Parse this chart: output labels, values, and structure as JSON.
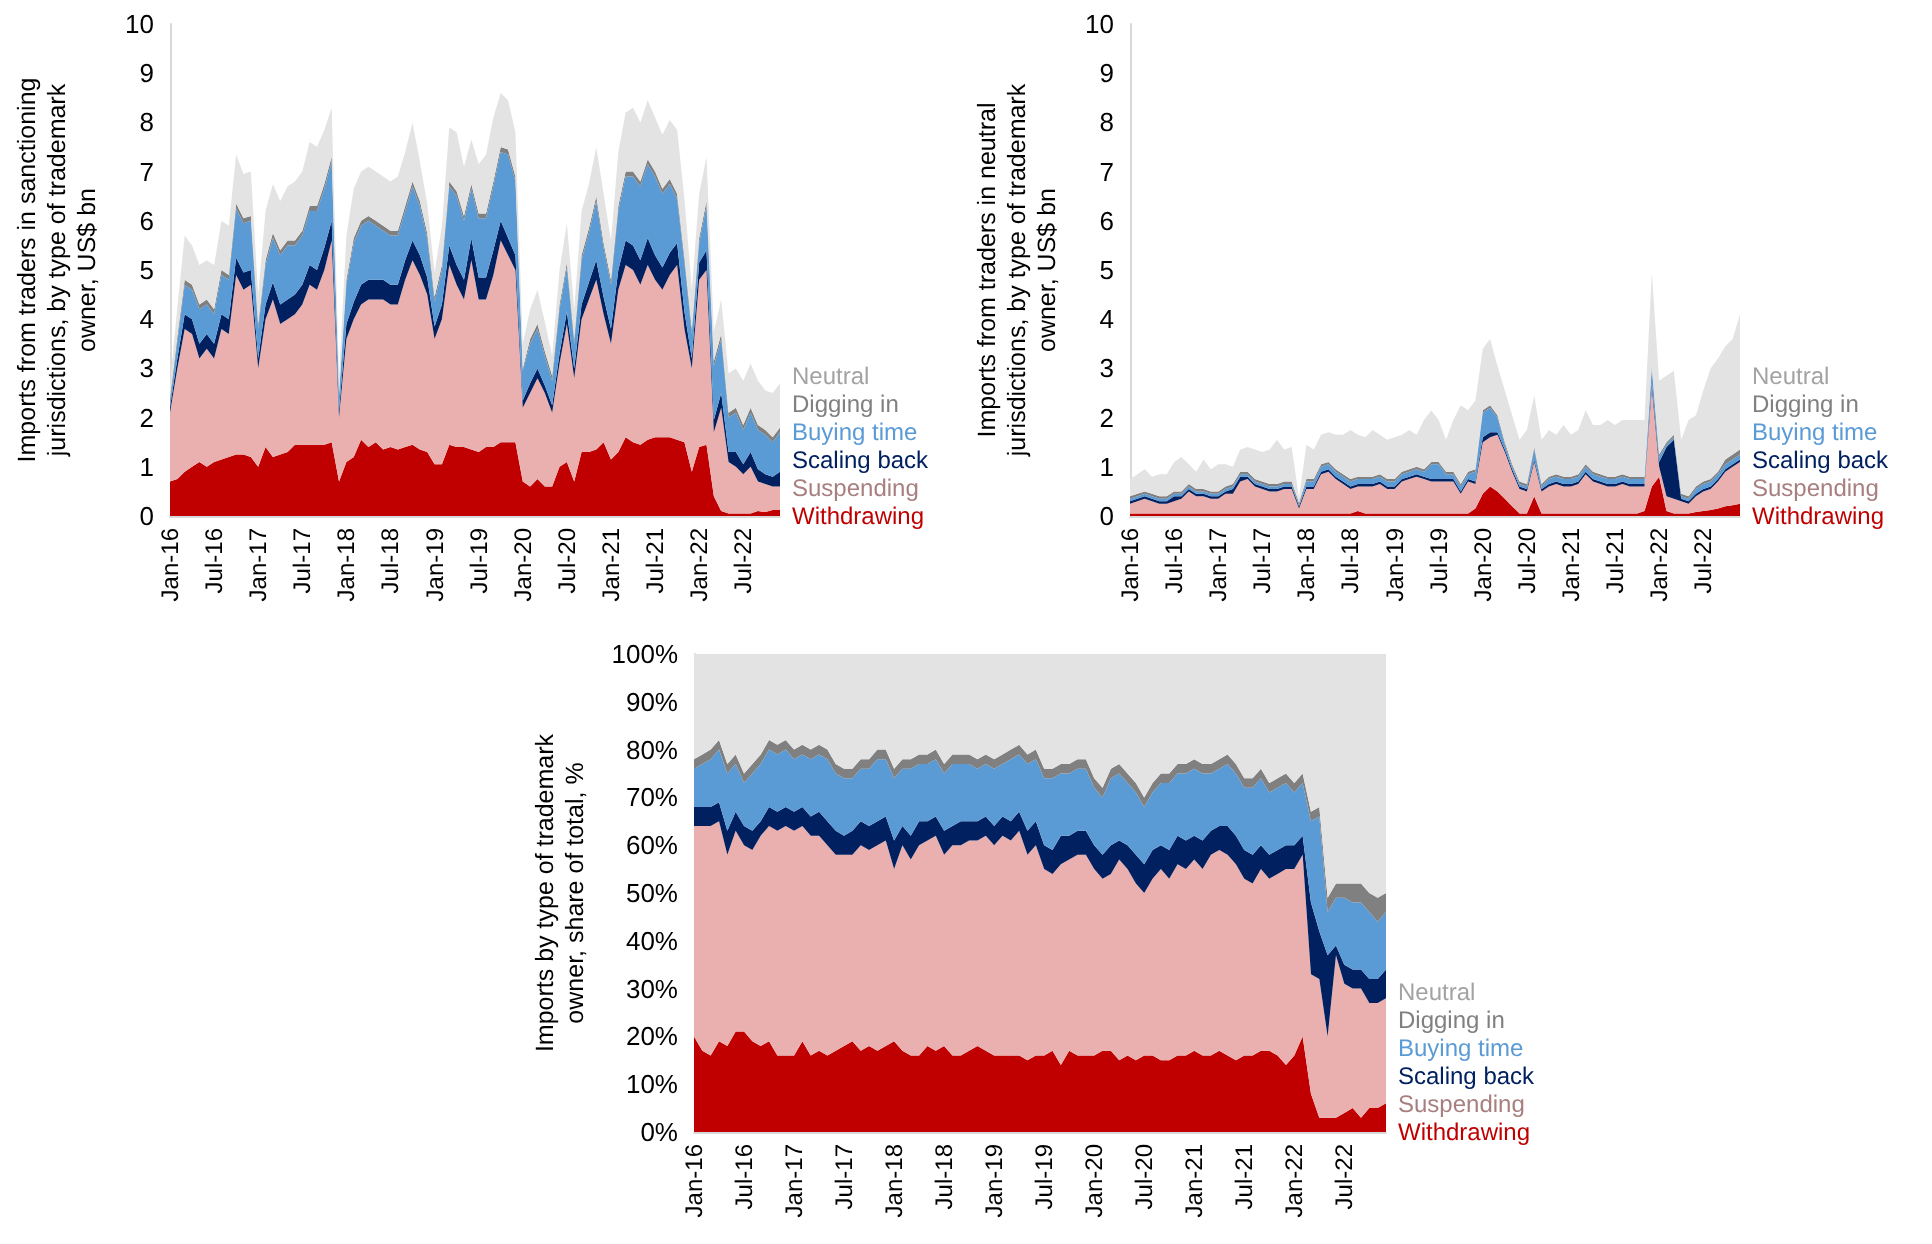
{
  "chart_data": [
    {
      "type": "area",
      "stacked": true,
      "legend": "right",
      "ylabel": "Imports from traders in sanctioning jurisdictions, by type of trademark owner, US$ bn",
      "ylim": [
        0,
        10
      ],
      "yticks": [
        0,
        1,
        2,
        3,
        4,
        5,
        6,
        7,
        8,
        9,
        10
      ],
      "categories": [
        "Jan-16",
        null,
        null,
        null,
        null,
        null,
        "Jul-16",
        null,
        null,
        null,
        null,
        null,
        "Jan-17",
        null,
        null,
        null,
        null,
        null,
        "Jul-17",
        null,
        null,
        null,
        null,
        null,
        "Jan-18",
        null,
        null,
        null,
        null,
        null,
        "Jul-18",
        null,
        null,
        null,
        null,
        null,
        "Jan-19",
        null,
        null,
        null,
        null,
        null,
        "Jul-19",
        null,
        null,
        null,
        null,
        null,
        "Jan-20",
        null,
        null,
        null,
        null,
        null,
        "Jul-20",
        null,
        null,
        null,
        null,
        null,
        "Jan-21",
        null,
        null,
        null,
        null,
        null,
        "Jul-21",
        null,
        null,
        null,
        null,
        null,
        "Jan-22",
        null,
        null,
        null,
        null,
        null,
        "Jul-22",
        null,
        null,
        null,
        null,
        null
      ],
      "series": [
        {
          "name": "Withdrawing",
          "color": "#c00000",
          "values": [
            0.7,
            0.75,
            0.9,
            1.0,
            1.1,
            1.0,
            1.1,
            1.15,
            1.2,
            1.25,
            1.25,
            1.2,
            1.0,
            1.4,
            1.2,
            1.25,
            1.3,
            1.45,
            1.45,
            1.45,
            1.45,
            1.45,
            1.5,
            0.7,
            1.1,
            1.2,
            1.55,
            1.4,
            1.5,
            1.35,
            1.4,
            1.35,
            1.4,
            1.45,
            1.35,
            1.3,
            1.05,
            1.05,
            1.45,
            1.4,
            1.4,
            1.35,
            1.3,
            1.4,
            1.4,
            1.5,
            1.5,
            1.5,
            0.7,
            0.6,
            0.75,
            0.6,
            0.6,
            1.0,
            1.1,
            0.7,
            1.3,
            1.3,
            1.35,
            1.5,
            1.15,
            1.3,
            1.6,
            1.5,
            1.45,
            1.55,
            1.6,
            1.6,
            1.6,
            1.55,
            1.5,
            0.9,
            1.4,
            1.45,
            0.4,
            0.1,
            0.05,
            0.05,
            0.05,
            0.05,
            0.1,
            0.08,
            0.12,
            0.12
          ]
        },
        {
          "name": "Suspending",
          "color": "#eab0b0",
          "values": [
            1.4,
            2.25,
            2.9,
            2.7,
            2.1,
            2.4,
            2.1,
            2.65,
            2.5,
            3.65,
            3.35,
            3.5,
            2.0,
            2.6,
            3.2,
            2.65,
            2.7,
            2.65,
            2.85,
            3.25,
            3.15,
            3.55,
            4.1,
            1.3,
            2.5,
            2.8,
            2.75,
            3.0,
            2.9,
            3.05,
            2.9,
            2.95,
            3.4,
            3.75,
            3.55,
            3.2,
            2.55,
            2.95,
            3.65,
            3.3,
            3.0,
            3.85,
            3.1,
            3.0,
            3.5,
            4.1,
            3.8,
            3.5,
            1.5,
            1.9,
            2.05,
            1.9,
            1.5,
            2.1,
            2.8,
            2.1,
            2.7,
            3.1,
            3.45,
            2.6,
            2.35,
            3.3,
            3.5,
            3.5,
            3.25,
            3.55,
            3.2,
            3.0,
            3.3,
            3.55,
            2.3,
            2.1,
            3.4,
            3.55,
            1.3,
            2.1,
            1.05,
            0.95,
            0.8,
            0.95,
            0.6,
            0.57,
            0.48,
            0.48
          ]
        },
        {
          "name": "Scaling back",
          "color": "#002060",
          "values": [
            0.1,
            0.2,
            0.3,
            0.3,
            0.3,
            0.3,
            0.3,
            0.3,
            0.3,
            0.35,
            0.35,
            0.3,
            0.2,
            0.3,
            0.35,
            0.4,
            0.4,
            0.4,
            0.4,
            0.4,
            0.4,
            0.45,
            0.4,
            0.15,
            0.3,
            0.35,
            0.4,
            0.4,
            0.4,
            0.4,
            0.4,
            0.4,
            0.4,
            0.4,
            0.4,
            0.35,
            0.25,
            0.3,
            0.4,
            0.4,
            0.4,
            0.45,
            0.45,
            0.45,
            0.5,
            0.4,
            0.35,
            0.3,
            0.15,
            0.2,
            0.2,
            0.15,
            0.15,
            0.2,
            0.25,
            0.2,
            0.3,
            0.35,
            0.4,
            0.35,
            0.3,
            0.4,
            0.5,
            0.5,
            0.5,
            0.55,
            0.5,
            0.45,
            0.45,
            0.45,
            0.35,
            0.2,
            0.35,
            0.4,
            0.25,
            0.3,
            0.2,
            0.3,
            0.2,
            0.3,
            0.25,
            0.2,
            0.2,
            0.3
          ]
        },
        {
          "name": "Buying time",
          "color": "#5b9bd5",
          "values": [
            0.1,
            0.35,
            0.6,
            0.6,
            0.7,
            0.6,
            0.6,
            0.8,
            0.8,
            1.0,
            1.0,
            1.0,
            0.6,
            0.8,
            0.9,
            1.0,
            1.1,
            1.0,
            1.0,
            1.1,
            1.2,
            1.2,
            1.2,
            0.3,
            0.8,
            1.2,
            1.2,
            1.2,
            1.1,
            1.0,
            1.0,
            1.0,
            1.0,
            1.1,
            1.0,
            0.8,
            0.5,
            0.7,
            1.2,
            1.4,
            1.2,
            1.0,
            1.2,
            1.2,
            1.3,
            1.4,
            1.7,
            1.5,
            0.6,
            0.8,
            0.8,
            0.6,
            0.5,
            0.9,
            0.9,
            0.5,
            0.9,
            1.0,
            1.2,
            1.0,
            0.9,
            1.2,
            1.3,
            1.4,
            1.5,
            1.5,
            1.6,
            1.5,
            1.4,
            0.9,
            1.0,
            0.5,
            0.4,
            0.9,
            1.1,
            1.1,
            0.7,
            0.8,
            0.7,
            0.8,
            0.8,
            0.8,
            0.7,
            0.8
          ]
        },
        {
          "name": "Digging in",
          "color": "#808080",
          "values": [
            0.1,
            0.1,
            0.1,
            0.1,
            0.1,
            0.1,
            0.1,
            0.1,
            0.1,
            0.1,
            0.1,
            0.1,
            0.1,
            0.1,
            0.1,
            0.1,
            0.1,
            0.1,
            0.1,
            0.1,
            0.1,
            0.1,
            0.1,
            0.05,
            0.1,
            0.1,
            0.1,
            0.1,
            0.1,
            0.1,
            0.1,
            0.1,
            0.1,
            0.1,
            0.1,
            0.1,
            0.1,
            0.1,
            0.1,
            0.1,
            0.1,
            0.1,
            0.1,
            0.1,
            0.1,
            0.1,
            0.1,
            0.1,
            0.05,
            0.1,
            0.1,
            0.1,
            0.1,
            0.1,
            0.1,
            0.1,
            0.1,
            0.1,
            0.1,
            0.1,
            0.1,
            0.1,
            0.1,
            0.1,
            0.1,
            0.1,
            0.1,
            0.1,
            0.1,
            0.1,
            0.1,
            0.1,
            0.1,
            0.1,
            0.1,
            0.1,
            0.1,
            0.1,
            0.1,
            0.1,
            0.1,
            0.1,
            0.1,
            0.1
          ]
        },
        {
          "name": "Neutral",
          "color": "#e3e3e3",
          "values": [
            0.3,
            0.6,
            0.9,
            0.8,
            0.8,
            0.8,
            0.9,
            1.0,
            1.0,
            1.0,
            0.9,
            0.9,
            0.6,
            1.0,
            1.0,
            1.0,
            1.1,
            1.2,
            1.2,
            1.3,
            1.2,
            1.1,
            1.0,
            0.3,
            0.9,
            1.0,
            1.0,
            1.0,
            1.0,
            1.0,
            1.0,
            1.1,
            1.1,
            1.2,
            0.8,
            0.6,
            0.5,
            0.8,
            1.1,
            1.2,
            1.0,
            0.9,
            1.0,
            1.2,
            1.3,
            1.1,
            1.0,
            0.9,
            0.5,
            0.6,
            0.7,
            0.6,
            0.4,
            0.7,
            0.8,
            0.6,
            0.9,
            0.9,
            1.0,
            1.0,
            0.8,
            1.1,
            1.2,
            1.3,
            1.2,
            1.2,
            1.1,
            1.1,
            1.2,
            1.3,
            1.2,
            0.8,
            0.9,
            0.9,
            0.6,
            0.7,
            0.8,
            0.8,
            0.9,
            0.9,
            0.9,
            0.8,
            0.9,
            0.9
          ]
        }
      ]
    },
    {
      "type": "area",
      "stacked": true,
      "legend": "right",
      "ylabel": "Imports from traders in neutral jurisdictions, by type of trademark owner, US$ bn",
      "ylim": [
        0,
        10
      ],
      "yticks": [
        0,
        1,
        2,
        3,
        4,
        5,
        6,
        7,
        8,
        9,
        10
      ],
      "categories": [
        "Jan-16",
        null,
        null,
        null,
        null,
        null,
        "Jul-16",
        null,
        null,
        null,
        null,
        null,
        "Jan-17",
        null,
        null,
        null,
        null,
        null,
        "Jul-17",
        null,
        null,
        null,
        null,
        null,
        "Jan-18",
        null,
        null,
        null,
        null,
        null,
        "Jul-18",
        null,
        null,
        null,
        null,
        null,
        "Jan-19",
        null,
        null,
        null,
        null,
        null,
        "Jul-19",
        null,
        null,
        null,
        null,
        null,
        "Jan-20",
        null,
        null,
        null,
        null,
        null,
        "Jul-20",
        null,
        null,
        null,
        null,
        null,
        "Jan-21",
        null,
        null,
        null,
        null,
        null,
        "Jul-21",
        null,
        null,
        null,
        null,
        null,
        "Jan-22",
        null,
        null,
        null,
        null,
        null,
        "Jul-22",
        null,
        null,
        null,
        null,
        null
      ],
      "series": [
        {
          "name": "Withdrawing",
          "color": "#c00000",
          "values": [
            0.05,
            0.05,
            0.05,
            0.05,
            0.05,
            0.05,
            0.05,
            0.05,
            0.05,
            0.05,
            0.05,
            0.05,
            0.05,
            0.05,
            0.05,
            0.05,
            0.05,
            0.05,
            0.05,
            0.05,
            0.05,
            0.05,
            0.05,
            0.05,
            0.05,
            0.05,
            0.05,
            0.05,
            0.05,
            0.05,
            0.05,
            0.1,
            0.05,
            0.05,
            0.05,
            0.05,
            0.05,
            0.05,
            0.05,
            0.05,
            0.05,
            0.05,
            0.05,
            0.05,
            0.05,
            0.05,
            0.05,
            0.15,
            0.45,
            0.6,
            0.5,
            0.35,
            0.2,
            0.05,
            0.05,
            0.4,
            0.05,
            0.05,
            0.05,
            0.05,
            0.05,
            0.05,
            0.05,
            0.05,
            0.05,
            0.05,
            0.05,
            0.05,
            0.05,
            0.05,
            0.1,
            0.6,
            0.8,
            0.1,
            0.05,
            0.05,
            0.05,
            0.08,
            0.1,
            0.12,
            0.15,
            0.2,
            0.22,
            0.25
          ]
        },
        {
          "name": "Suspending",
          "color": "#eab0b0",
          "values": [
            0.2,
            0.25,
            0.3,
            0.25,
            0.2,
            0.2,
            0.25,
            0.3,
            0.45,
            0.35,
            0.35,
            0.3,
            0.3,
            0.4,
            0.4,
            0.65,
            0.7,
            0.55,
            0.5,
            0.45,
            0.45,
            0.5,
            0.5,
            0.1,
            0.5,
            0.5,
            0.8,
            0.85,
            0.7,
            0.6,
            0.5,
            0.5,
            0.55,
            0.55,
            0.6,
            0.5,
            0.5,
            0.65,
            0.7,
            0.75,
            0.7,
            0.65,
            0.65,
            0.65,
            0.65,
            0.4,
            0.65,
            0.5,
            1.05,
            1.0,
            1.15,
            0.95,
            0.7,
            0.5,
            0.45,
            0.7,
            0.45,
            0.55,
            0.6,
            0.55,
            0.55,
            0.6,
            0.8,
            0.65,
            0.6,
            0.55,
            0.55,
            0.6,
            0.55,
            0.55,
            0.5,
            2.0,
            0.2,
            0.3,
            0.3,
            0.25,
            0.2,
            0.32,
            0.4,
            0.43,
            0.55,
            0.7,
            0.78,
            0.85
          ]
        },
        {
          "name": "Scaling back",
          "color": "#002060",
          "values": [
            0.05,
            0.05,
            0.05,
            0.05,
            0.05,
            0.05,
            0.1,
            0.05,
            0.05,
            0.05,
            0.05,
            0.05,
            0.05,
            0.05,
            0.1,
            0.1,
            0.05,
            0.05,
            0.05,
            0.05,
            0.05,
            0.05,
            0.05,
            0.05,
            0.05,
            0.05,
            0.05,
            0.05,
            0.05,
            0.05,
            0.05,
            0.05,
            0.05,
            0.05,
            0.05,
            0.05,
            0.05,
            0.05,
            0.05,
            0.05,
            0.05,
            0.05,
            0.05,
            0.05,
            0.05,
            0.05,
            0.05,
            0.05,
            0.1,
            0.1,
            0.05,
            0.05,
            0.05,
            0.05,
            0.05,
            0.05,
            0.05,
            0.05,
            0.05,
            0.05,
            0.05,
            0.05,
            0.05,
            0.05,
            0.05,
            0.05,
            0.05,
            0.05,
            0.05,
            0.05,
            0.05,
            0.1,
            0.1,
            1.0,
            1.2,
            0.05,
            0.05,
            0.05,
            0.05,
            0.05,
            0.05,
            0.05,
            0.05,
            0.05
          ]
        },
        {
          "name": "Buying time",
          "color": "#5b9bd5",
          "values": [
            0.05,
            0.05,
            0.05,
            0.05,
            0.05,
            0.05,
            0.05,
            0.05,
            0.05,
            0.05,
            0.05,
            0.05,
            0.05,
            0.05,
            0.05,
            0.05,
            0.05,
            0.05,
            0.05,
            0.05,
            0.05,
            0.05,
            0.05,
            0.02,
            0.1,
            0.1,
            0.1,
            0.1,
            0.1,
            0.1,
            0.1,
            0.1,
            0.1,
            0.1,
            0.1,
            0.1,
            0.1,
            0.1,
            0.1,
            0.1,
            0.1,
            0.3,
            0.3,
            0.1,
            0.1,
            0.1,
            0.1,
            0.2,
            0.5,
            0.5,
            0.3,
            0.1,
            0.05,
            0.05,
            0.05,
            0.2,
            0.05,
            0.1,
            0.1,
            0.1,
            0.1,
            0.1,
            0.1,
            0.1,
            0.1,
            0.1,
            0.1,
            0.1,
            0.1,
            0.1,
            0.1,
            0.3,
            0.1,
            0.05,
            0.05,
            0.05,
            0.05,
            0.1,
            0.1,
            0.1,
            0.1,
            0.1,
            0.1,
            0.1
          ]
        },
        {
          "name": "Digging in",
          "color": "#808080",
          "values": [
            0.05,
            0.05,
            0.05,
            0.05,
            0.05,
            0.05,
            0.05,
            0.05,
            0.05,
            0.05,
            0.05,
            0.05,
            0.05,
            0.05,
            0.05,
            0.05,
            0.05,
            0.05,
            0.05,
            0.05,
            0.05,
            0.05,
            0.05,
            0.05,
            0.05,
            0.05,
            0.05,
            0.05,
            0.05,
            0.05,
            0.05,
            0.05,
            0.05,
            0.05,
            0.05,
            0.05,
            0.05,
            0.05,
            0.05,
            0.05,
            0.05,
            0.05,
            0.05,
            0.05,
            0.05,
            0.05,
            0.05,
            0.05,
            0.05,
            0.05,
            0.05,
            0.05,
            0.05,
            0.05,
            0.05,
            0.05,
            0.05,
            0.05,
            0.05,
            0.05,
            0.05,
            0.05,
            0.05,
            0.05,
            0.05,
            0.05,
            0.05,
            0.05,
            0.05,
            0.05,
            0.05,
            0.05,
            0.05,
            0.05,
            0.05,
            0.05,
            0.05,
            0.05,
            0.05,
            0.05,
            0.05,
            0.1,
            0.1,
            0.1
          ]
        },
        {
          "name": "Neutral",
          "color": "#e3e3e3",
          "values": [
            0.35,
            0.4,
            0.45,
            0.35,
            0.45,
            0.45,
            0.6,
            0.7,
            0.4,
            0.35,
            0.6,
            0.45,
            0.55,
            0.45,
            0.35,
            0.45,
            0.5,
            0.6,
            0.6,
            0.7,
            0.9,
            0.65,
            0.7,
            0.1,
            0.7,
            0.6,
            0.6,
            0.6,
            0.7,
            0.8,
            1.0,
            0.85,
            0.8,
            0.95,
            0.8,
            0.8,
            0.85,
            0.75,
            0.8,
            0.65,
            1.0,
            1.05,
            0.85,
            0.65,
            1.05,
            1.6,
            1.25,
            1.4,
            1.25,
            1.35,
            1.0,
            1.05,
            1.0,
            0.85,
            1.1,
            1.05,
            0.9,
            0.95,
            0.8,
            1.05,
            0.85,
            0.9,
            1.1,
            0.95,
            1.0,
            1.15,
            1.05,
            1.1,
            1.15,
            1.15,
            1.15,
            1.9,
            1.5,
            1.35,
            1.3,
            1.1,
            1.55,
            1.45,
            1.85,
            2.25,
            2.3,
            2.3,
            2.35,
            2.75
          ]
        }
      ]
    },
    {
      "type": "area",
      "stacked": true,
      "legend": "right",
      "ylabel": "Imports by type of trademark owner, share of total, %",
      "ylim": [
        0,
        100
      ],
      "yticks": [
        {
          "value": 0,
          "label": "0%"
        },
        {
          "value": 10,
          "label": "10%"
        },
        {
          "value": 20,
          "label": "20%"
        },
        {
          "value": 30,
          "label": "30%"
        },
        {
          "value": 40,
          "label": "40%"
        },
        {
          "value": 50,
          "label": "50%"
        },
        {
          "value": 60,
          "label": "60%"
        },
        {
          "value": 70,
          "label": "70%"
        },
        {
          "value": 80,
          "label": "80%"
        },
        {
          "value": 90,
          "label": "90%"
        },
        {
          "value": 100,
          "label": "100%"
        }
      ],
      "categories": [
        "Jan-16",
        null,
        null,
        null,
        null,
        null,
        "Jul-16",
        null,
        null,
        null,
        null,
        null,
        "Jan-17",
        null,
        null,
        null,
        null,
        null,
        "Jul-17",
        null,
        null,
        null,
        null,
        null,
        "Jan-18",
        null,
        null,
        null,
        null,
        null,
        "Jul-18",
        null,
        null,
        null,
        null,
        null,
        "Jan-19",
        null,
        null,
        null,
        null,
        null,
        "Jul-19",
        null,
        null,
        null,
        null,
        null,
        "Jan-20",
        null,
        null,
        null,
        null,
        null,
        "Jul-20",
        null,
        null,
        null,
        null,
        null,
        "Jan-21",
        null,
        null,
        null,
        null,
        null,
        "Jul-21",
        null,
        null,
        null,
        null,
        null,
        "Jan-22",
        null,
        null,
        null,
        null,
        null,
        "Jul-22",
        null,
        null,
        null,
        null,
        null
      ],
      "series": [
        {
          "name": "Withdrawing",
          "color": "#c00000",
          "values": [
            20,
            17,
            16,
            19,
            18,
            21,
            21,
            19,
            18,
            19,
            16,
            16,
            16,
            19,
            16,
            17,
            16,
            17,
            18,
            19,
            17,
            18,
            17,
            18,
            19,
            17,
            16,
            16,
            18,
            17,
            18,
            16,
            16,
            17,
            18,
            17,
            16,
            16,
            16,
            16,
            15,
            16,
            16,
            17,
            14,
            17,
            16,
            16,
            16,
            17,
            17,
            15,
            16,
            15,
            16,
            16,
            15,
            15,
            16,
            16,
            17,
            16,
            16,
            17,
            16,
            15,
            16,
            16,
            17,
            17,
            16,
            14,
            16,
            20,
            8,
            3,
            3,
            3,
            4,
            5,
            3,
            5,
            5,
            6
          ]
        },
        {
          "name": "Suspending",
          "color": "#eab0b0",
          "values": [
            44,
            47,
            48,
            46,
            40,
            42,
            39,
            40,
            44,
            45,
            47,
            48,
            47,
            45,
            46,
            45,
            44,
            41,
            40,
            39,
            43,
            41,
            43,
            43,
            36,
            43,
            41,
            44,
            43,
            45,
            40,
            44,
            44,
            44,
            43,
            45,
            44,
            46,
            45,
            47,
            43,
            44,
            39,
            37,
            42,
            40,
            42,
            42,
            39,
            36,
            37,
            42,
            39,
            37,
            34,
            37,
            40,
            38,
            40,
            39,
            40,
            39,
            42,
            42,
            42,
            41,
            37,
            36,
            38,
            36,
            38,
            41,
            39,
            38,
            25,
            29,
            17,
            34,
            27,
            25,
            27,
            22,
            22,
            22
          ]
        },
        {
          "name": "Scaling back",
          "color": "#002060",
          "values": [
            4,
            4,
            4,
            4,
            5,
            4,
            4,
            4,
            3,
            4,
            4,
            4,
            4,
            4,
            4,
            5,
            5,
            5,
            4,
            5,
            5,
            5,
            5,
            5,
            6,
            4,
            5,
            5,
            4,
            4,
            5,
            4,
            5,
            4,
            4,
            4,
            4,
            4,
            4,
            4,
            5,
            5,
            5,
            5,
            6,
            5,
            5,
            5,
            5,
            5,
            6,
            4,
            5,
            6,
            6,
            6,
            5,
            6,
            6,
            6,
            5,
            6,
            5,
            5,
            6,
            6,
            6,
            6,
            5,
            5,
            5,
            5,
            5,
            4,
            15,
            10,
            17,
            2,
            4,
            4,
            4,
            5,
            5,
            6
          ]
        },
        {
          "name": "Buying time",
          "color": "#5b9bd5",
          "values": [
            8,
            9,
            10,
            11,
            12,
            10,
            9,
            12,
            12,
            12,
            12,
            12,
            11,
            11,
            12,
            12,
            13,
            12,
            12,
            11,
            11,
            12,
            13,
            12,
            13,
            12,
            14,
            12,
            12,
            12,
            12,
            13,
            12,
            12,
            11,
            11,
            12,
            11,
            13,
            12,
            14,
            13,
            14,
            15,
            13,
            13,
            13,
            13,
            12,
            12,
            14,
            14,
            13,
            13,
            12,
            12,
            13,
            14,
            13,
            14,
            14,
            14,
            12,
            12,
            13,
            13,
            13,
            14,
            14,
            13,
            13,
            13,
            11,
            11,
            17,
            24,
            9,
            10,
            14,
            14,
            14,
            14,
            12,
            12
          ]
        },
        {
          "name": "Digging in",
          "color": "#808080",
          "values": [
            2,
            2,
            2,
            2,
            2,
            2,
            2,
            2,
            2,
            2,
            2,
            2,
            2,
            2,
            2,
            2,
            2,
            2,
            2,
            2,
            2,
            2,
            2,
            2,
            2,
            2,
            2,
            2,
            2,
            2,
            2,
            2,
            2,
            2,
            2,
            2,
            2,
            2,
            2,
            2,
            2,
            2,
            2,
            2,
            2,
            2,
            2,
            2,
            2,
            2,
            2,
            2,
            2,
            2,
            2,
            2,
            2,
            2,
            2,
            2,
            2,
            2,
            2,
            2,
            2,
            2,
            2,
            2,
            2,
            2,
            2,
            2,
            2,
            2,
            2,
            2,
            3,
            3,
            3,
            4,
            4,
            4,
            5,
            4
          ]
        },
        {
          "name": "Neutral",
          "color": "#e3e3e3",
          "values": [
            22,
            21,
            20,
            18,
            23,
            21,
            25,
            23,
            21,
            18,
            19,
            18,
            20,
            19,
            20,
            19,
            20,
            23,
            24,
            24,
            22,
            22,
            20,
            20,
            24,
            22,
            22,
            21,
            21,
            20,
            23,
            21,
            21,
            21,
            22,
            21,
            22,
            21,
            20,
            19,
            21,
            20,
            24,
            24,
            23,
            23,
            22,
            22,
            26,
            28,
            24,
            23,
            25,
            27,
            30,
            27,
            25,
            25,
            23,
            23,
            22,
            23,
            23,
            22,
            21,
            23,
            26,
            26,
            24,
            27,
            26,
            25,
            27,
            25,
            33,
            32,
            51,
            48,
            48,
            48,
            48,
            50,
            51,
            50
          ]
        }
      ]
    }
  ]
}
